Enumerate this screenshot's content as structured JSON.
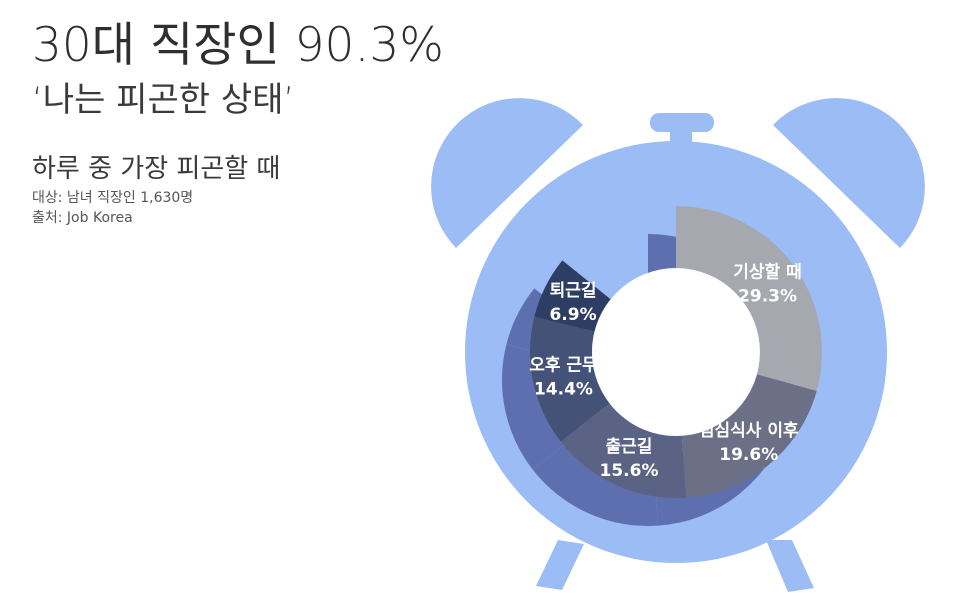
{
  "header": {
    "headline": "30대 직장인 90.3%",
    "subhead": "‘나는 피곤한 상태’"
  },
  "chart_info": {
    "title": "하루 중 가장 피곤할 때",
    "target": "대상: 남녀 직장인 1,630명",
    "source": "출처: Job Korea"
  },
  "colors": {
    "clock_blue": "#9bbcf5",
    "ring_shadow": "#5e6faf"
  },
  "chart_data": {
    "type": "pie",
    "title": "하루 중 가장 피곤할 때",
    "unit": "%",
    "categories": [
      "기상할 때",
      "점심식사 이후",
      "출근길",
      "오후 근무",
      "퇴근길"
    ],
    "values": [
      29.3,
      19.6,
      15.6,
      14.4,
      6.9
    ],
    "value_labels": [
      "29.3%",
      "19.6%",
      "15.6%",
      "14.4%",
      "6.9%"
    ],
    "colors": [
      "#a6a8b0",
      "#6c7087",
      "#5b6384",
      "#445278",
      "#2e3d63"
    ]
  }
}
